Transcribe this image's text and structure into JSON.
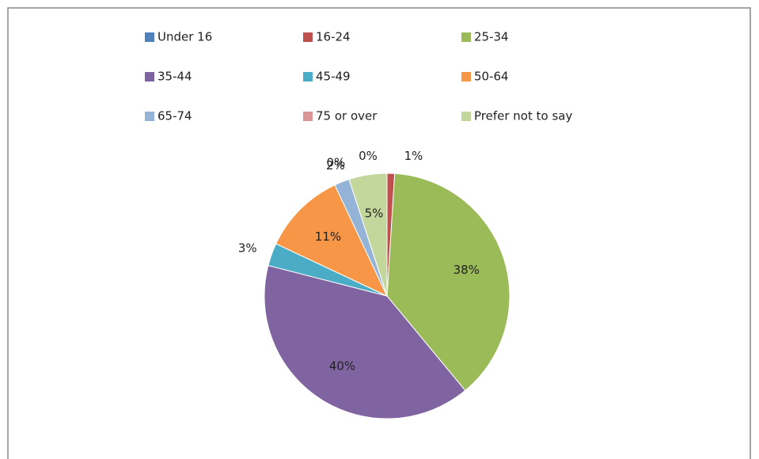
{
  "chart_data": {
    "type": "pie",
    "categories": [
      "Under 16",
      "16-24",
      "25-34",
      "35-44",
      "45-49",
      "50-64",
      "65-74",
      "75 or over",
      "Prefer not to say"
    ],
    "values": [
      0,
      1,
      38,
      40,
      3,
      11,
      2,
      0,
      5
    ],
    "value_labels": [
      "0%",
      "1%",
      "38%",
      "40%",
      "3%",
      "11%",
      "2%",
      "0%",
      "5%"
    ],
    "colors": [
      "#4f81bd",
      "#c0504d",
      "#9bbb59",
      "#8064a2",
      "#4bacc6",
      "#f79646",
      "#95b3d7",
      "#d99694",
      "#c3d69b"
    ],
    "legend": "top"
  }
}
